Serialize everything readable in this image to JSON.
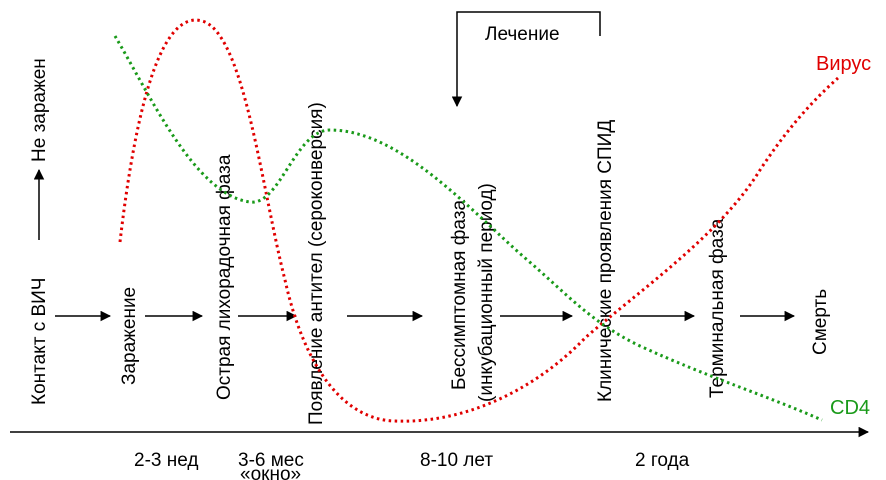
{
  "stages": [
    {
      "text": "Контакт с ВИЧ"
    },
    {
      "text": "Заражение"
    },
    {
      "text": "Острая лихорадочная фаза"
    },
    {
      "text": "Появление антител (сероконверсия)"
    },
    {
      "text": "Бессимптомная фаза"
    },
    {
      "text": "(инкубационный период)"
    },
    {
      "text": "Клинические проявления СПИД"
    },
    {
      "text": "Терминальная фаза"
    },
    {
      "text": "Смерть"
    }
  ],
  "not_infected_label": "Не заражен",
  "treatment_label": "Лечение",
  "time_labels": [
    {
      "text": "2-3 нед"
    },
    {
      "text": "3-6 мес"
    },
    {
      "text": "«окно»"
    },
    {
      "text": "8-10 лет"
    },
    {
      "text": "2 года"
    }
  ],
  "curves": {
    "virus": {
      "label": "Вирус",
      "color": "#e00000"
    },
    "cd4": {
      "label": "CD4",
      "color": "#1a9a1a"
    }
  },
  "colors": {
    "line": "#000000",
    "background": "#ffffff"
  }
}
